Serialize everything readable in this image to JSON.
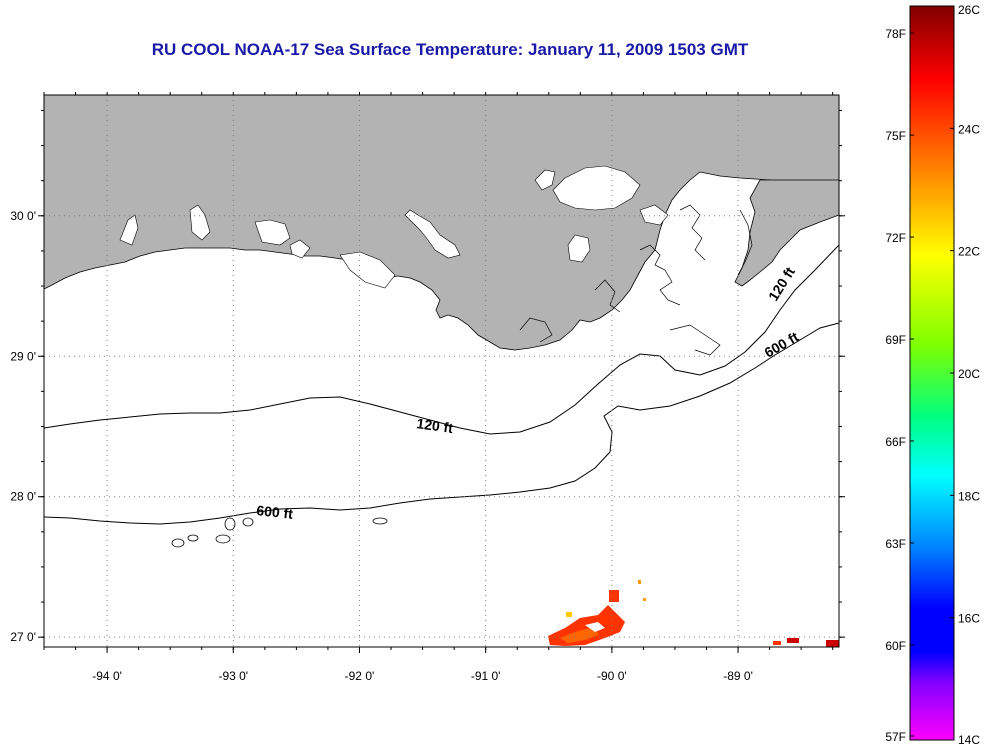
{
  "title": "RU COOL  NOAA-17  Sea Surface Temperature:  January 11, 2009 1503 GMT",
  "map": {
    "lon_range": [
      -94.5,
      -88.2
    ],
    "lat_range": [
      26.93,
      30.86
    ],
    "lon_ticks": [
      {
        "value": -94,
        "label": "-94 0'"
      },
      {
        "value": -93,
        "label": "-93 0'"
      },
      {
        "value": -92,
        "label": "-92 0'"
      },
      {
        "value": -91,
        "label": "-91 0'"
      },
      {
        "value": -90,
        "label": "-90 0'"
      },
      {
        "value": -89,
        "label": "-89 0'"
      }
    ],
    "lat_ticks": [
      {
        "value": 27,
        "label": "27 0'"
      },
      {
        "value": 28,
        "label": "28 0'"
      },
      {
        "value": 29,
        "label": "29 0'"
      },
      {
        "value": 30,
        "label": "30 0'"
      }
    ],
    "contour_labels": {
      "west_120": "120 ft",
      "east_120": "120 ft",
      "west_600": "600 ft",
      "east_600": "600 ft"
    },
    "colors": {
      "land": "#b3b3b3",
      "water": "#ffffff",
      "grid": "#808080"
    }
  },
  "colorbar": {
    "celsius_labels": [
      "26C",
      "24C",
      "22C",
      "20C",
      "18C",
      "16C",
      "14C"
    ],
    "fahrenheit_labels": [
      "78F",
      "75F",
      "72F",
      "69F",
      "66F",
      "63F",
      "60F",
      "57F"
    ],
    "min_c": 14,
    "max_c": 26,
    "colors_top_to_bottom": [
      "#800000",
      "#ff0000",
      "#ff8000",
      "#ffff00",
      "#80ff00",
      "#00ff80",
      "#00ffff",
      "#0080ff",
      "#0000ff",
      "#8000ff",
      "#ff00ff"
    ]
  }
}
